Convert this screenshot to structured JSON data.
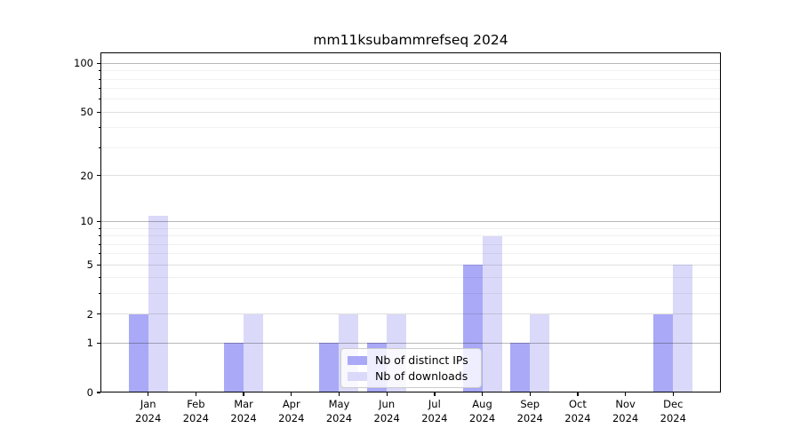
{
  "chart_data": {
    "type": "bar",
    "title": "mm11ksubammrefseq 2024",
    "categories": [
      "Jan 2024",
      "Feb 2024",
      "Mar 2024",
      "Apr 2024",
      "May 2024",
      "Jun 2024",
      "Jul 2024",
      "Aug 2024",
      "Sep 2024",
      "Oct 2024",
      "Nov 2024",
      "Dec 2024"
    ],
    "series": [
      {
        "name": "Nb of distinct IPs",
        "color": "#a9a9f7",
        "values": [
          2,
          0,
          1,
          0,
          1,
          1,
          0,
          5,
          1,
          0,
          0,
          2
        ]
      },
      {
        "name": "Nb of downloads",
        "color": "#dad9f9",
        "values": [
          11,
          0,
          2,
          0,
          2,
          2,
          0,
          8,
          2,
          0,
          0,
          5
        ]
      }
    ],
    "xlabel": "",
    "ylabel": "",
    "y_axis": {
      "scale": "log1p",
      "major_ticks": [
        0,
        1,
        2,
        5,
        10,
        20,
        50,
        100
      ],
      "minor_gridlines": [
        3,
        4,
        6,
        7,
        8,
        9,
        30,
        40,
        60,
        70,
        80,
        90
      ],
      "decade_gridlines": [
        1,
        10,
        100
      ],
      "ylim": [
        0,
        117
      ]
    },
    "grid": "on",
    "legend_position": "lower center, inside plot"
  },
  "legend": {
    "items": [
      {
        "label": "Nb of distinct IPs"
      },
      {
        "label": "Nb of downloads"
      }
    ]
  }
}
